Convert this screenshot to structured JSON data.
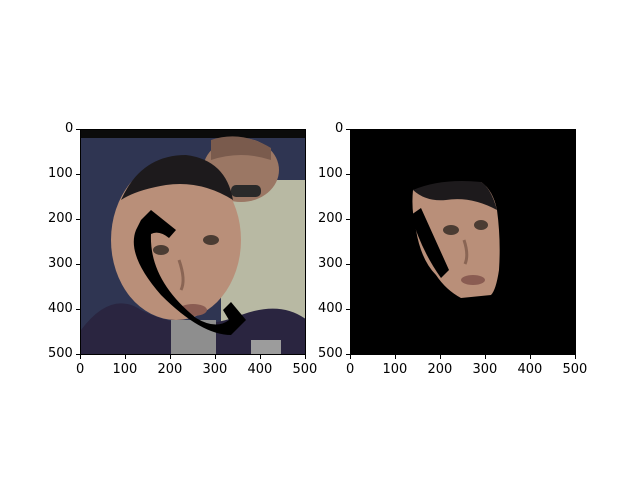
{
  "figure": {
    "panels": [
      {
        "id": "left",
        "x_ticks": [
          "0",
          "100",
          "200",
          "300",
          "400",
          "500"
        ],
        "y_ticks": [
          "0",
          "100",
          "200",
          "300",
          "400",
          "500"
        ]
      },
      {
        "id": "right",
        "x_ticks": [
          "0",
          "100",
          "200",
          "300",
          "400",
          "500"
        ],
        "y_ticks": [
          "0",
          "100",
          "200",
          "300",
          "400",
          "500"
        ]
      }
    ]
  },
  "colors": {
    "background": "#ffffff",
    "mask_black": "#000000",
    "skin": "#b98f79",
    "shirt": "#2a2540",
    "wall": "#2f3552"
  }
}
